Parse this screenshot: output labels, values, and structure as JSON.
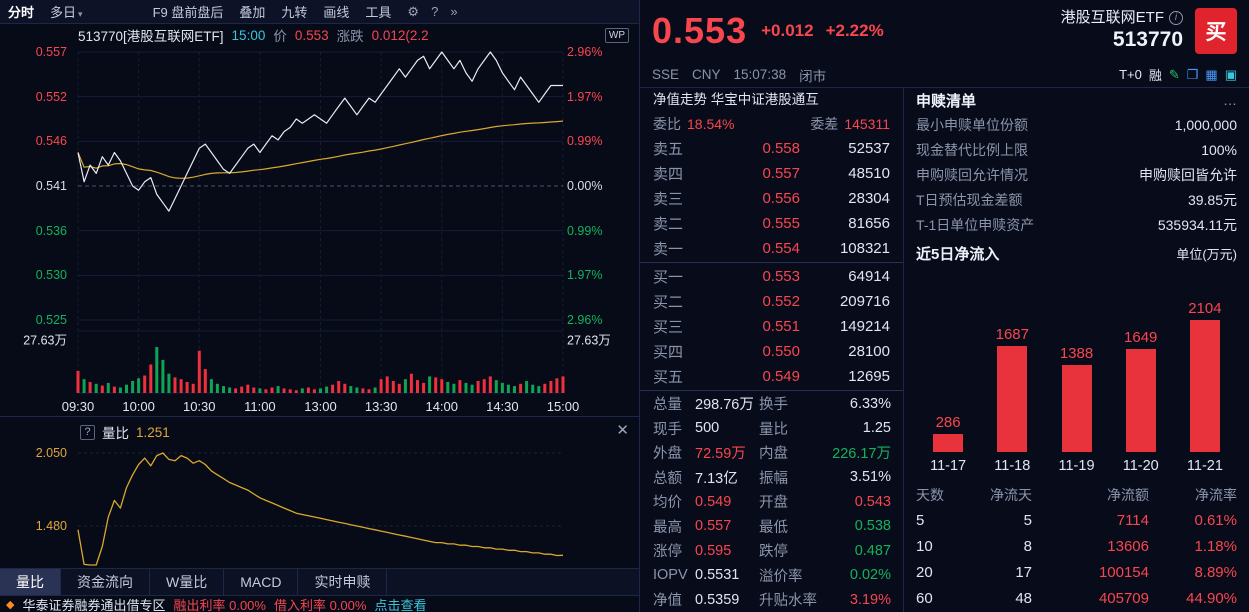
{
  "toolbar": {
    "items": [
      {
        "t": "分时",
        "sel": true
      },
      {
        "t": "多日",
        "arrow": true
      },
      {
        "t": "F9 盘前盘后",
        "gap": true
      },
      {
        "t": "叠加"
      },
      {
        "t": "九转"
      },
      {
        "t": "画线"
      },
      {
        "t": "工具"
      }
    ],
    "gear": "⚙",
    "help": "?",
    "more": "»"
  },
  "chart_header": {
    "code": "513770[港股互联网ETF]",
    "time": "15:00",
    "price_label": "价",
    "price": "0.553",
    "chg_label": "涨跌",
    "chg": "0.012(2.2",
    "wp": "WP"
  },
  "main_chart": {
    "left_labels": [
      {
        "t": "0.557",
        "c": "up"
      },
      {
        "t": "0.552",
        "c": "up"
      },
      {
        "t": "0.546",
        "c": "up"
      },
      {
        "t": "0.541",
        "c": "flat"
      },
      {
        "t": "0.536",
        "c": "down"
      },
      {
        "t": "0.530",
        "c": "down"
      },
      {
        "t": "0.525",
        "c": "down"
      }
    ],
    "right_labels": [
      {
        "t": "2.96%",
        "c": "up"
      },
      {
        "t": "1.97%",
        "c": "up"
      },
      {
        "t": "0.99%",
        "c": "up"
      },
      {
        "t": "0.00%",
        "c": "flat"
      },
      {
        "t": "0.99%",
        "c": "down"
      },
      {
        "t": "1.97%",
        "c": "down"
      },
      {
        "t": "2.96%",
        "c": "down"
      }
    ],
    "vol_label": "27.63万",
    "times": [
      "09:30",
      "10:00",
      "10:30",
      "11:00",
      "13:00",
      "13:30",
      "14:00",
      "14:30",
      "15:00"
    ],
    "y_max": 0.557,
    "y_min": 0.525,
    "prev_close": 0.541,
    "price_series": [
      0.545,
      0.5415,
      0.5435,
      0.5425,
      0.5445,
      0.5435,
      0.545,
      0.544,
      0.5425,
      0.541,
      0.5405,
      0.5415,
      0.542,
      0.54,
      0.539,
      0.538,
      0.5395,
      0.541,
      0.5425,
      0.544,
      0.5455,
      0.546,
      0.545,
      0.544,
      0.543,
      0.5425,
      0.5435,
      0.5445,
      0.5455,
      0.546,
      0.545,
      0.546,
      0.547,
      0.5465,
      0.5475,
      0.548,
      0.549,
      0.5485,
      0.549,
      0.5495,
      0.549,
      0.5485,
      0.5495,
      0.5505,
      0.5515,
      0.5505,
      0.5495,
      0.5505,
      0.5515,
      0.551,
      0.552,
      0.553,
      0.554,
      0.555,
      0.554,
      0.555,
      0.556,
      0.5565,
      0.555,
      0.556,
      0.557,
      0.556,
      0.555,
      0.556,
      0.5545,
      0.5535,
      0.555,
      0.556,
      0.557,
      0.556,
      0.5545,
      0.5535,
      0.5525,
      0.554,
      0.553,
      0.552,
      0.551,
      0.552,
      0.553,
      0.553,
      0.553
    ],
    "volume_series": [
      48,
      30,
      24,
      20,
      16,
      22,
      14,
      12,
      18,
      26,
      32,
      38,
      62,
      100,
      72,
      42,
      34,
      30,
      24,
      20,
      92,
      52,
      30,
      20,
      15,
      12,
      10,
      14,
      18,
      12,
      10,
      8,
      12,
      15,
      10,
      8,
      6,
      10,
      12,
      8,
      10,
      14,
      18,
      26,
      20,
      15,
      12,
      10,
      8,
      12,
      30,
      36,
      26,
      20,
      30,
      42,
      28,
      22,
      36,
      34,
      30,
      24,
      20,
      28,
      22,
      18,
      26,
      30,
      36,
      28,
      22,
      18,
      15,
      20,
      26,
      18,
      15,
      20,
      26,
      32,
      36
    ]
  },
  "ratio_chart": {
    "help": "?",
    "label": "量比",
    "value": "1.251",
    "close": "✕",
    "axis": [
      {
        "t": "2.050",
        "v": 2.05
      },
      {
        "t": "1.480",
        "v": 1.48
      }
    ],
    "series": [
      1.45,
      1.18,
      1.06,
      1.12,
      1.32,
      1.55,
      1.68,
      1.62,
      1.78,
      1.88,
      1.96,
      2.01,
      1.95,
      2.03,
      2.05,
      2.0,
      1.99,
      2.03,
      2.01,
      1.97,
      1.99,
      1.96,
      1.91,
      1.88,
      1.85,
      1.82,
      1.8,
      1.78,
      1.76,
      1.73,
      1.7,
      1.68,
      1.66,
      1.64,
      1.62,
      1.6,
      1.58,
      1.57,
      1.56,
      1.55,
      1.54,
      1.53,
      1.52,
      1.51,
      1.5,
      1.49,
      1.48,
      1.47,
      1.46,
      1.45,
      1.44,
      1.43,
      1.42,
      1.41,
      1.4,
      1.39,
      1.38,
      1.37,
      1.36,
      1.35,
      1.35,
      1.34,
      1.34,
      1.33,
      1.33,
      1.32,
      1.32,
      1.31,
      1.31,
      1.3,
      1.3,
      1.29,
      1.29,
      1.28,
      1.28,
      1.27,
      1.27,
      1.26,
      1.26,
      1.25,
      1.251
    ]
  },
  "tabs": [
    {
      "t": "量比",
      "sel": true
    },
    {
      "t": "资金流向"
    },
    {
      "t": "W量比"
    },
    {
      "t": "MACD"
    },
    {
      "t": "实时申赎"
    }
  ],
  "ticker": {
    "segs": [
      {
        "t": "华泰证券融券通出借专区",
        "c": "w"
      },
      {
        "t": "融出利率 0.00%",
        "c": "up"
      },
      {
        "t": "借入利率 0.00%",
        "c": "up"
      },
      {
        "t": "点击查看",
        "c": "cy"
      }
    ]
  },
  "quote": {
    "price": "0.553",
    "chg": "+0.012",
    "pct": "+2.22%",
    "name": "港股互联网ETF",
    "code": "513770",
    "buy": "买",
    "exchange": "SSE",
    "currency": "CNY",
    "time": "15:07:38",
    "status": "闭市",
    "t0": "T+0",
    "margin": "融"
  },
  "book": {
    "scroll_text": "净值走势 华宝中证港股通互",
    "weibi_label": "委比",
    "weibi": "18.54%",
    "weicha_label": "委差",
    "weicha": "145311",
    "asks": [
      [
        "卖五",
        "0.558",
        "52537"
      ],
      [
        "卖四",
        "0.557",
        "48510"
      ],
      [
        "卖三",
        "0.556",
        "28304"
      ],
      [
        "卖二",
        "0.555",
        "81656"
      ],
      [
        "卖一",
        "0.554",
        "108321"
      ]
    ],
    "bids": [
      [
        "买一",
        "0.553",
        "64914"
      ],
      [
        "买二",
        "0.552",
        "209716"
      ],
      [
        "买三",
        "0.551",
        "149214"
      ],
      [
        "买四",
        "0.550",
        "28100"
      ],
      [
        "买五",
        "0.549",
        "12695"
      ]
    ]
  },
  "stats": [
    [
      {
        "l": "总量",
        "v": "298.76万",
        "c": "w"
      },
      {
        "l": "换手",
        "v": "6.33%",
        "c": "w"
      }
    ],
    [
      {
        "l": "现手",
        "v": "500",
        "c": "w"
      },
      {
        "l": "量比",
        "v": "1.25",
        "c": "w"
      }
    ],
    [
      {
        "l": "外盘",
        "v": "72.59万",
        "c": "up"
      },
      {
        "l": "内盘",
        "v": "226.17万",
        "c": "down"
      }
    ],
    [
      {
        "l": "总额",
        "v": "7.13亿",
        "c": "w"
      },
      {
        "l": "振幅",
        "v": "3.51%",
        "c": "w"
      }
    ],
    [
      {
        "l": "均价",
        "v": "0.549",
        "c": "up"
      },
      {
        "l": "开盘",
        "v": "0.543",
        "c": "up"
      }
    ],
    [
      {
        "l": "最高",
        "v": "0.557",
        "c": "up"
      },
      {
        "l": "最低",
        "v": "0.538",
        "c": "down"
      }
    ],
    [
      {
        "l": "涨停",
        "v": "0.595",
        "c": "up"
      },
      {
        "l": "跌停",
        "v": "0.487",
        "c": "down"
      }
    ],
    [
      {
        "l": "IOPV",
        "v": "0.5531",
        "c": "w"
      },
      {
        "l": "溢价率",
        "v": "0.02%",
        "c": "down"
      }
    ],
    [
      {
        "l": "净值",
        "v": "0.5359",
        "c": "w"
      },
      {
        "l": "升贴水率",
        "v": "3.19%",
        "c": "up"
      }
    ]
  ],
  "panel": {
    "title": "申赎清单",
    "more": "…",
    "info": [
      [
        "最小申赎单位份额",
        "1,000,000"
      ],
      [
        "现金替代比例上限",
        "100%"
      ],
      [
        "申购赎回允许情况",
        "申购赎回皆允许"
      ],
      [
        "T日预估现金差额",
        "39.85元"
      ],
      [
        "T-1日单位申赎资产",
        "535934.11元"
      ]
    ],
    "flow_title": "近5日净流入",
    "flow_unit": "单位(万元)",
    "flow_chart": {
      "type": "bar",
      "categories": [
        "11-17",
        "11-18",
        "11-19",
        "11-20",
        "11-21"
      ],
      "values": [
        286,
        1687,
        1388,
        1649,
        2104
      ]
    },
    "table": {
      "headers": [
        "天数",
        "净流天",
        "净流额",
        "净流率"
      ],
      "rows": [
        [
          "5",
          "5",
          "7114",
          "0.61%"
        ],
        [
          "10",
          "8",
          "13606",
          "1.18%"
        ],
        [
          "20",
          "17",
          "100154",
          "8.89%"
        ],
        [
          "60",
          "48",
          "405709",
          "44.90%"
        ]
      ]
    }
  }
}
